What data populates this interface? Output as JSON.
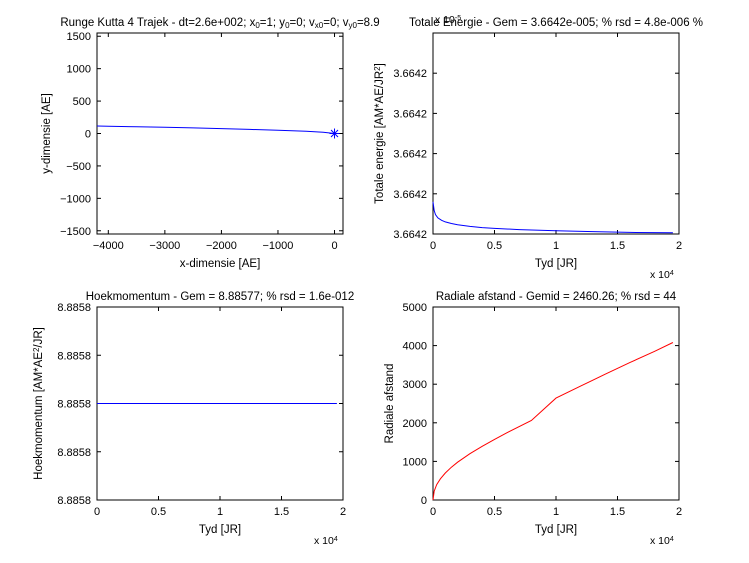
{
  "chart_data": [
    {
      "id": "trajectory",
      "type": "line",
      "title": "Runge Kutta 4 Trajek - dt=2.6e+002; x",
      "title_parts": [
        {
          "text": "Runge Kutta 4 Trajek - dt=2.6e+002; x"
        },
        {
          "text": "0",
          "sub": true
        },
        {
          "text": "=1; y"
        },
        {
          "text": "0",
          "sub": true
        },
        {
          "text": "=0; v"
        },
        {
          "text": "x0",
          "sub": true
        },
        {
          "text": "=0; v"
        },
        {
          "text": "y0",
          "sub": true
        },
        {
          "text": "=8.9"
        }
      ],
      "xlabel": "x-dimensie [AE]",
      "ylabel": "y-dimensie [AE]",
      "xlim": [
        -4200,
        150
      ],
      "ylim": [
        -1550,
        1550
      ],
      "xticks": [
        -4000,
        -3000,
        -2000,
        -1000,
        0
      ],
      "yticks": [
        -1500,
        -1000,
        -500,
        0,
        500,
        1000,
        1500
      ],
      "series": [
        {
          "color": "#0000ff",
          "x": [
            -4200,
            -4000,
            -3500,
            -3000,
            -2500,
            -2000,
            -1500,
            -1000,
            -500,
            -200,
            0
          ],
          "y": [
            115,
            112,
            104,
            96,
            86,
            75,
            63,
            50,
            34,
            20,
            0
          ]
        }
      ],
      "marker": {
        "x": 0,
        "y": 0,
        "symbol": "*",
        "color": "#0000ff"
      }
    },
    {
      "id": "energy",
      "type": "line",
      "title": "Totale Energie - Gem = 3.6642e-005; % rsd = 4.8e-006 %",
      "title_parts": [
        {
          "text": "Totale Energie - Gem = 3.6642e-005; % rsd = 4.8e-006 %"
        }
      ],
      "xlabel": "Tyd [JR]",
      "ylabel_parts": [
        {
          "text": "Totale energie [AM*AE/JR"
        },
        {
          "text": "2",
          "sup": true
        },
        {
          "text": "]"
        }
      ],
      "ylabel": "Totale energie [AM*AE/JR2]",
      "x_exponent": "4",
      "y_exponent": "-5",
      "xlim": [
        0,
        2
      ],
      "ylim": [
        0,
        5
      ],
      "xticks": [
        0,
        0.5,
        1,
        1.5,
        2
      ],
      "xtick_labels": [
        "0",
        "0.5",
        "1",
        "1.5",
        "2"
      ],
      "yticks": [
        0,
        1,
        2,
        3,
        4
      ],
      "ytick_labels": [
        "3.6642",
        "3.6642",
        "3.6642",
        "3.6642",
        "3.6642"
      ],
      "series": [
        {
          "color": "#0000ff",
          "x": [
            0,
            0.01,
            0.02,
            0.04,
            0.07,
            0.1,
            0.15,
            0.2,
            0.3,
            0.4,
            0.5,
            0.7,
            1.0,
            1.3,
            1.6,
            1.95
          ],
          "y": [
            0.8,
            0.58,
            0.48,
            0.4,
            0.34,
            0.3,
            0.26,
            0.23,
            0.19,
            0.16,
            0.14,
            0.11,
            0.08,
            0.06,
            0.04,
            0.03
          ]
        }
      ]
    },
    {
      "id": "angular-momentum",
      "type": "line",
      "title": "Hoekmomentum - Gem = 8.88577; % rsd = 1.6e-012",
      "title_parts": [
        {
          "text": "Hoekmomentum - Gem = 8.88577; % rsd = 1.6e-012"
        }
      ],
      "xlabel": "Tyd [JR]",
      "ylabel_parts": [
        {
          "text": "Hoekmomentum [AM*AE"
        },
        {
          "text": "2",
          "sup": true
        },
        {
          "text": "/JR]"
        }
      ],
      "ylabel": "Hoekmomentum [AM*AE2/JR]",
      "x_exponent": "4",
      "xlim": [
        0,
        2
      ],
      "ylim": [
        0,
        4
      ],
      "xticks": [
        0,
        0.5,
        1,
        1.5,
        2
      ],
      "xtick_labels": [
        "0",
        "0.5",
        "1",
        "1.5",
        "2"
      ],
      "yticks": [
        0,
        1,
        2,
        3,
        4
      ],
      "ytick_labels": [
        "8.8858",
        "8.8858",
        "8.8858",
        "8.8858",
        "8.8858"
      ],
      "series": [
        {
          "color": "#0000ff",
          "x": [
            0,
            1.95
          ],
          "y": [
            2,
            2
          ]
        }
      ]
    },
    {
      "id": "radial-distance",
      "type": "line",
      "title": "Radiale afstand - Gemid = 2460.26; % rsd = 44",
      "title_parts": [
        {
          "text": "Radiale afstand - Gemid = 2460.26; % rsd = 44"
        }
      ],
      "xlabel": "Tyd [JR]",
      "ylabel": "Radiale afstand",
      "x_exponent": "4",
      "xlim": [
        0,
        2
      ],
      "ylim": [
        0,
        5000
      ],
      "xticks": [
        0,
        0.5,
        1,
        1.5,
        2
      ],
      "xtick_labels": [
        "0",
        "0.5",
        "1",
        "1.5",
        "2"
      ],
      "yticks": [
        0,
        1000,
        2000,
        3000,
        4000,
        5000
      ],
      "series": [
        {
          "color": "#ff0000",
          "x": [
            0,
            0.01,
            0.03,
            0.06,
            0.1,
            0.15,
            0.2,
            0.3,
            0.4,
            0.5,
            0.6,
            0.8,
            1.0,
            1.2,
            1.4,
            1.6,
            1.8,
            1.95
          ],
          "y": [
            0,
            230,
            400,
            550,
            700,
            850,
            980,
            1200,
            1390,
            1570,
            1740,
            2060,
            2640,
            2950,
            3260,
            3560,
            3850,
            4080
          ]
        }
      ]
    }
  ]
}
